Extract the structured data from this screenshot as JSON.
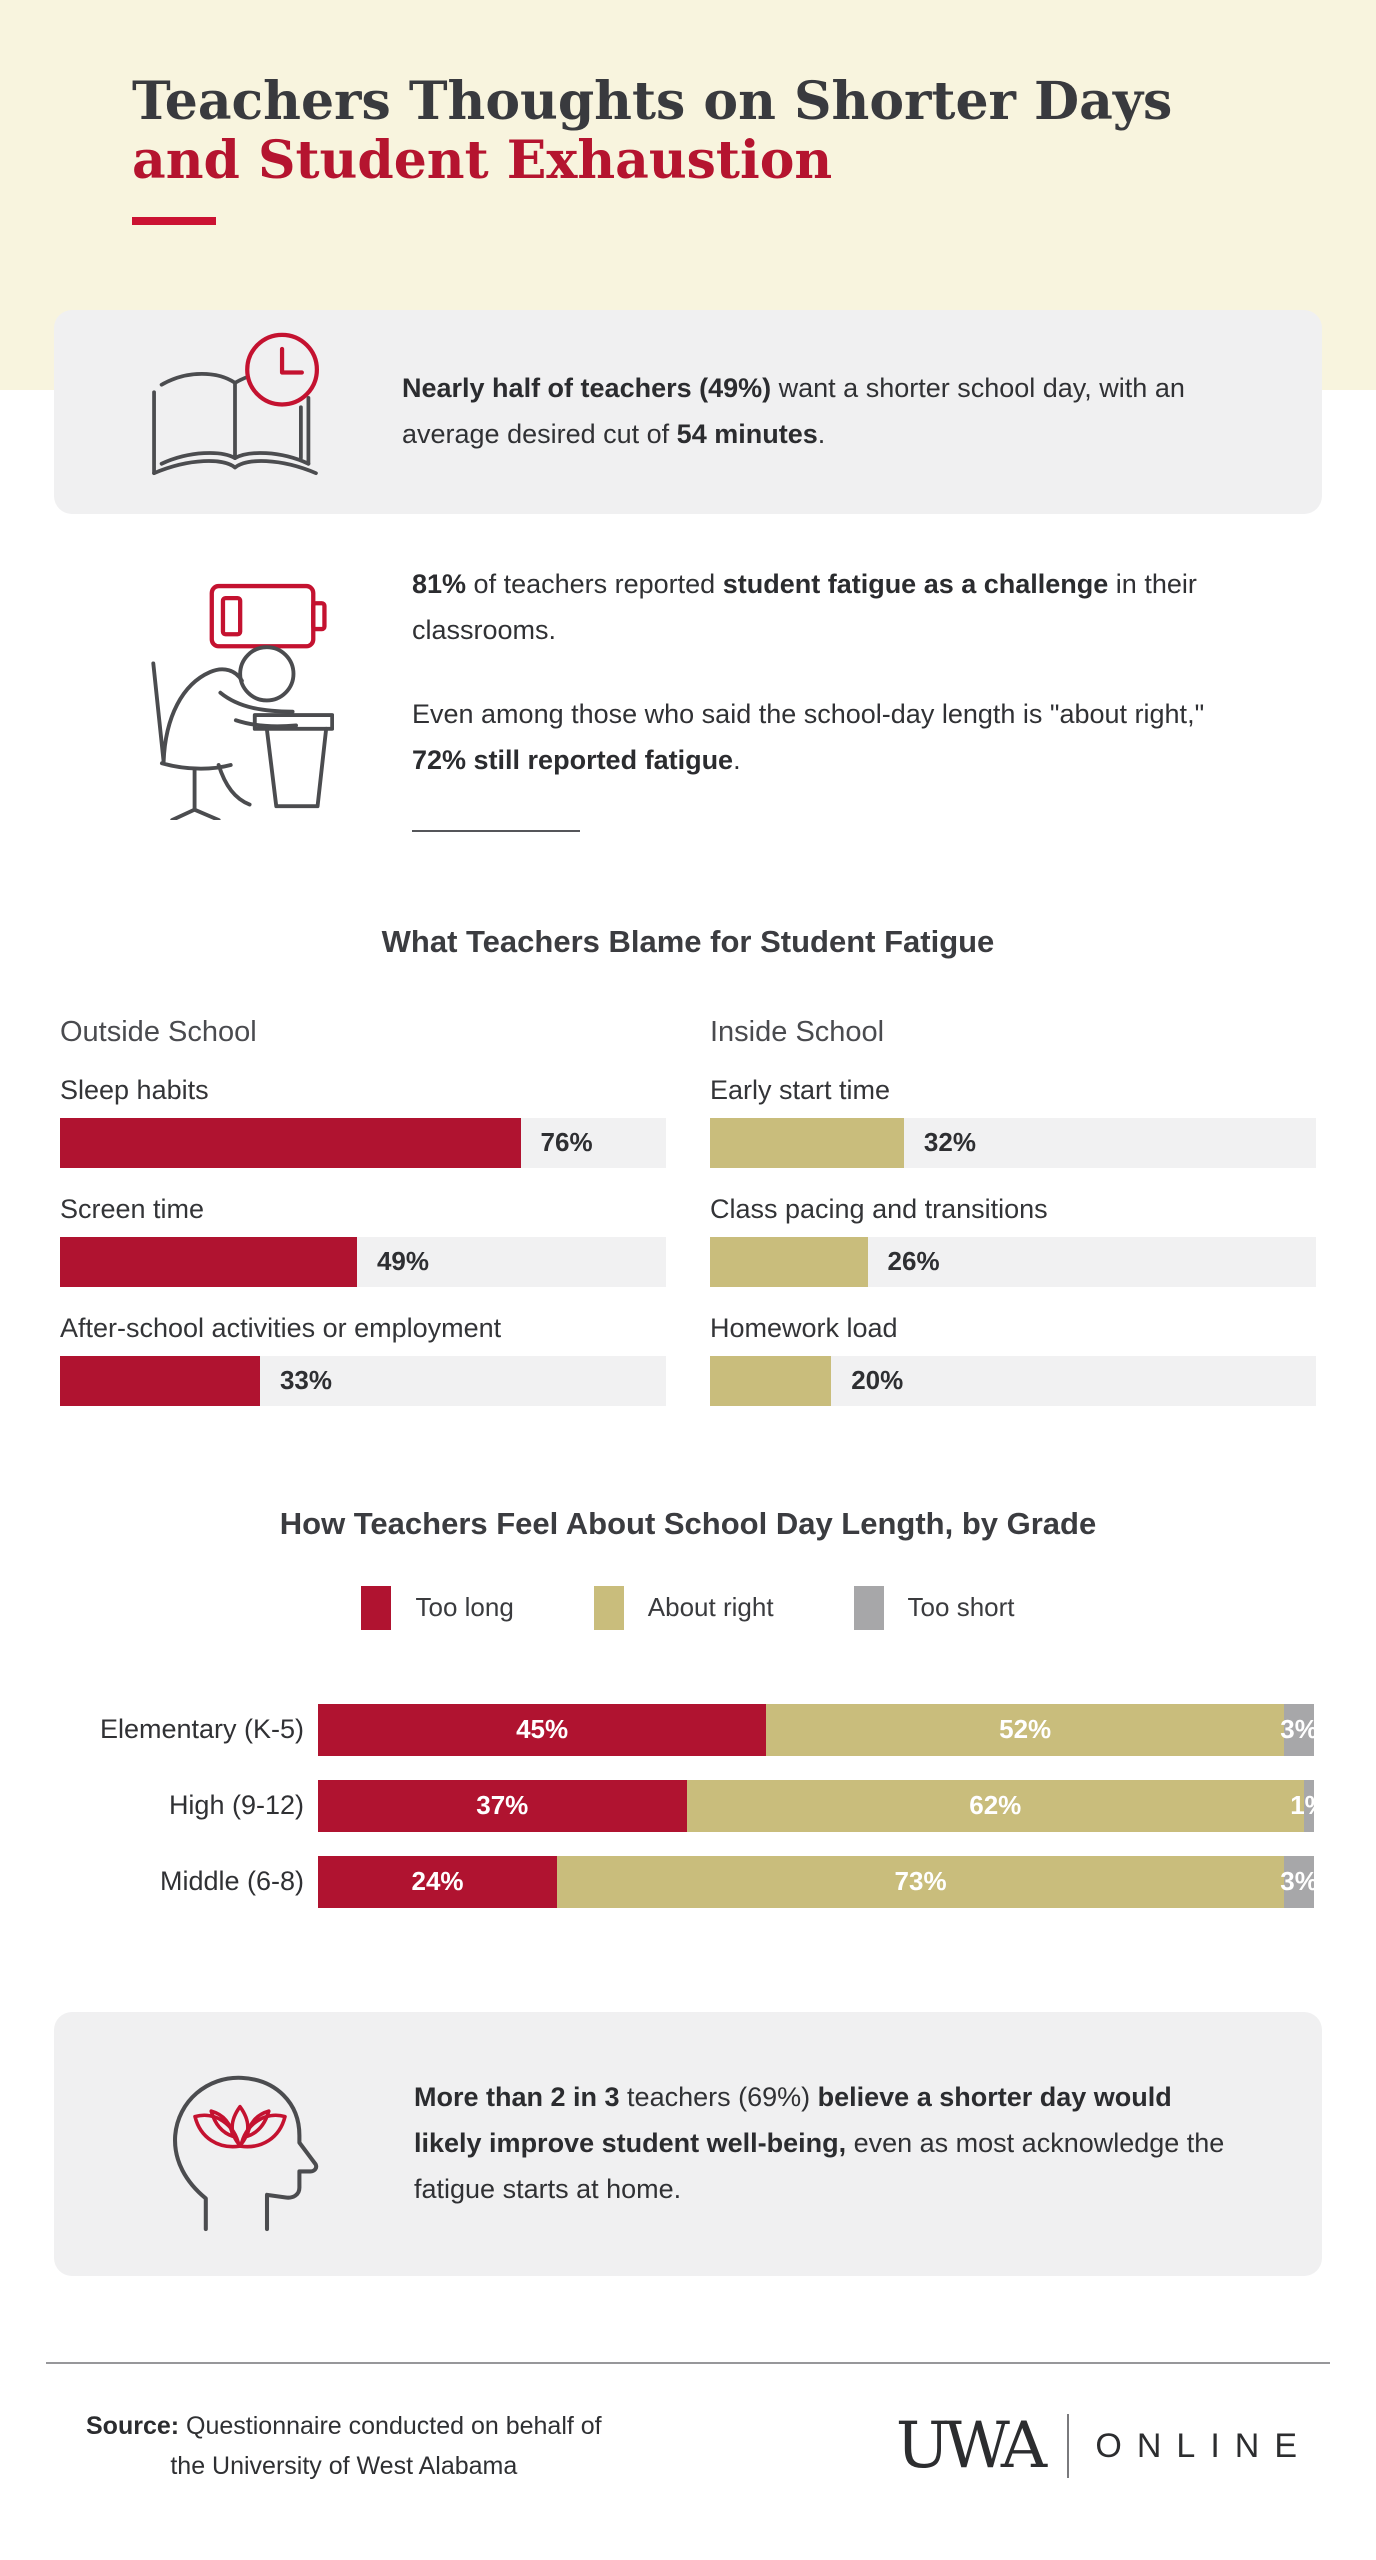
{
  "header": {
    "title_line1": "Teachers Thoughts on Shorter Days",
    "title_line2": "and Student Exhaustion"
  },
  "colors": {
    "crimson": "#b01330",
    "khaki": "#c9bd7c",
    "gray": "#a7a7a9",
    "cream": "#f8f4de",
    "box_gray": "#f0f0f1",
    "track": "#f1f1f2",
    "accent_red": "#b5142f",
    "underline_red": "#cb1232"
  },
  "stats": {
    "box1": {
      "icon": "book-clock-icon",
      "rich_text": [
        {
          "text": "Nearly half of teachers (49%)",
          "bold": true
        },
        {
          "text": " want a shorter school day, with an average desired cut of ",
          "bold": false
        },
        {
          "text": "54 minutes",
          "bold": true
        },
        {
          "text": ".",
          "bold": false
        }
      ]
    },
    "box2": {
      "icon": "tired-student-icon",
      "paragraph1": [
        {
          "text": "81%",
          "bold": true
        },
        {
          "text": " of teachers reported ",
          "bold": false
        },
        {
          "text": "student fatigue as a challenge",
          "bold": true
        },
        {
          "text": " in their classrooms.",
          "bold": false
        }
      ],
      "paragraph2": [
        {
          "text": "Even among those who said the school-day length is \"about right,\" ",
          "bold": false
        },
        {
          "text": "72% still reported fatigue",
          "bold": true
        },
        {
          "text": ".",
          "bold": false
        }
      ]
    },
    "box3": {
      "icon": "head-lotus-icon",
      "rich_text": [
        {
          "text": "More than 2 in 3",
          "bold": true
        },
        {
          "text": " teachers (69%) ",
          "bold": false
        },
        {
          "text": "believe a shorter day would likely improve student well-being,",
          "bold": true
        },
        {
          "text": " even as most acknowledge the fatigue starts at home.",
          "bold": false
        }
      ]
    }
  },
  "chart_data": [
    {
      "type": "bar",
      "orientation": "horizontal",
      "title": "What Teachers Blame for Student Fatigue",
      "unit": "%",
      "xlim": [
        0,
        100
      ],
      "grid": false,
      "groups": [
        {
          "name": "Outside School",
          "color": "#b01330",
          "categories": [
            "Sleep habits",
            "Screen time",
            "After-school activities or employment"
          ],
          "values": [
            76,
            49,
            33
          ]
        },
        {
          "name": "Inside School",
          "color": "#c9bd7c",
          "categories": [
            "Early start time",
            "Class pacing and transitions",
            "Homework load"
          ],
          "values": [
            32,
            26,
            20
          ]
        }
      ]
    },
    {
      "type": "bar",
      "stacked": true,
      "orientation": "horizontal",
      "title": "How Teachers Feel About School Day Length, by Grade",
      "unit": "%",
      "xlim": [
        0,
        100
      ],
      "legend_position": "top",
      "categories": [
        "Elementary (K-5)",
        "High (9-12)",
        "Middle (6-8)"
      ],
      "series": [
        {
          "name": "Too long",
          "color": "#b01330",
          "values": [
            45,
            37,
            24
          ]
        },
        {
          "name": "About right",
          "color": "#c9bd7c",
          "values": [
            52,
            62,
            73
          ]
        },
        {
          "name": "Too short",
          "color": "#a7a7a9",
          "values": [
            3,
            1,
            3
          ]
        }
      ]
    }
  ],
  "footer": {
    "source_label": "Source:",
    "source_line1_rest": " Questionnaire conducted on behalf of",
    "source_line2": "the University of West Alabama",
    "logo_primary": "UWA",
    "logo_secondary": "ONLINE"
  }
}
